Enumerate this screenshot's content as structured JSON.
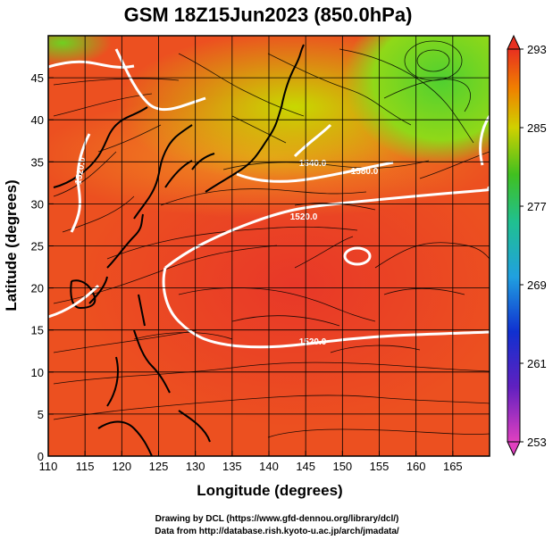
{
  "title": "GSM 18Z15Jun2023 (850.0hPa)",
  "xlabel": "Longitude (degrees)",
  "ylabel": "Latitude  (degrees)",
  "credit_line1": "Drawing by DCL (https://www.gfd-dennou.org/library/dcl/)",
  "credit_line2": "Data from http://database.rish.kyoto-u.ac.jp/arch/jmadata/",
  "chart_data": {
    "type": "heatmap",
    "xlim": [
      110,
      170
    ],
    "ylim": [
      0,
      50
    ],
    "x_ticks": [
      "110",
      "115",
      "120",
      "125",
      "130",
      "135",
      "140",
      "145",
      "150",
      "155",
      "160",
      "165"
    ],
    "y_ticks": [
      "0",
      "5",
      "10",
      "15",
      "20",
      "25",
      "30",
      "35",
      "40",
      "45"
    ],
    "colorbar": {
      "min": 253,
      "max": 293,
      "tick_labels": [
        "293",
        "285",
        "277",
        "269",
        "261",
        "253"
      ]
    },
    "contour_labels": [
      "1520.0",
      "1580.0",
      "1520.0",
      "1520.0",
      "1540.0"
    ],
    "field_samples": [
      {
        "lon": 160,
        "lat": 45,
        "value": 279
      },
      {
        "lon": 167,
        "lat": 38,
        "value": 278
      },
      {
        "lon": 140,
        "lat": 45,
        "value": 284
      },
      {
        "lon": 112,
        "lat": 45,
        "value": 287
      },
      {
        "lon": 145,
        "lat": 35,
        "value": 287
      },
      {
        "lon": 150,
        "lat": 25,
        "value": 292
      },
      {
        "lon": 130,
        "lat": 15,
        "value": 292
      },
      {
        "lon": 120,
        "lat": 5,
        "value": 291
      }
    ]
  }
}
